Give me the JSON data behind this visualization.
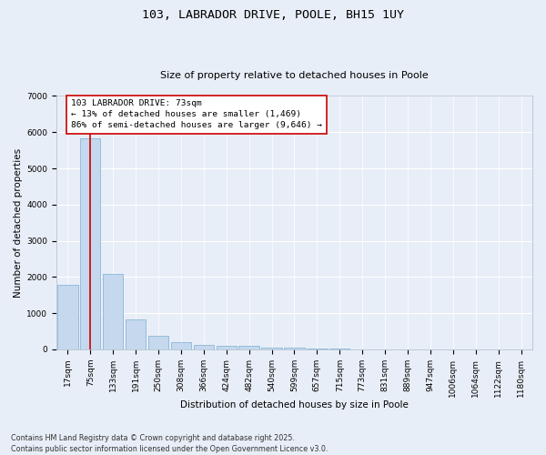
{
  "title": "103, LABRADOR DRIVE, POOLE, BH15 1UY",
  "subtitle": "Size of property relative to detached houses in Poole",
  "xlabel": "Distribution of detached houses by size in Poole",
  "ylabel": "Number of detached properties",
  "categories": [
    "17sqm",
    "75sqm",
    "133sqm",
    "191sqm",
    "250sqm",
    "308sqm",
    "366sqm",
    "424sqm",
    "482sqm",
    "540sqm",
    "599sqm",
    "657sqm",
    "715sqm",
    "773sqm",
    "831sqm",
    "889sqm",
    "947sqm",
    "1006sqm",
    "1064sqm",
    "1122sqm",
    "1180sqm"
  ],
  "values": [
    1780,
    5820,
    2080,
    820,
    370,
    210,
    130,
    100,
    90,
    60,
    40,
    30,
    20,
    10,
    8,
    5,
    4,
    3,
    2,
    1,
    1
  ],
  "bar_color": "#c5d8ed",
  "bar_edgecolor": "#7aafd4",
  "bg_color": "#e8eef7",
  "grid_color": "#ffffff",
  "vline_x": 1,
  "vline_color": "#cc0000",
  "annotation_text": "103 LABRADOR DRIVE: 73sqm\n← 13% of detached houses are smaller (1,469)\n86% of semi-detached houses are larger (9,646) →",
  "annotation_box_color": "#cc0000",
  "ylim": [
    0,
    7000
  ],
  "yticks": [
    0,
    1000,
    2000,
    3000,
    4000,
    5000,
    6000,
    7000
  ],
  "footer_line1": "Contains HM Land Registry data © Crown copyright and database right 2025.",
  "footer_line2": "Contains public sector information licensed under the Open Government Licence v3.0.",
  "title_fontsize": 9.5,
  "subtitle_fontsize": 8,
  "axis_label_fontsize": 7.5,
  "tick_fontsize": 6.5,
  "annotation_fontsize": 6.8,
  "footer_fontsize": 5.8
}
